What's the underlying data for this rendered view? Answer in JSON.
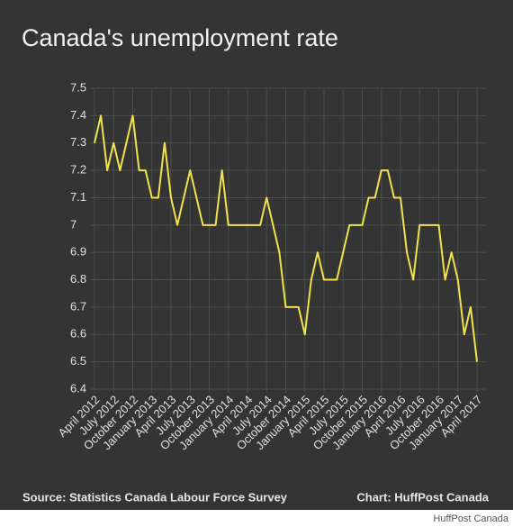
{
  "chart_data": {
    "type": "line",
    "title": "Canada's unemployment rate",
    "source": "Source: Statistics Canada Labour Force Survey",
    "credit": "Chart: HuffPost Canada",
    "watermark": "HuffPost Canada",
    "categories": [
      "April 2012",
      null,
      null,
      "July 2012",
      null,
      null,
      "October 2012",
      null,
      null,
      "January 2013",
      null,
      null,
      "April 2013",
      null,
      null,
      "July 2013",
      null,
      null,
      "October 2013",
      null,
      null,
      "January 2014",
      null,
      null,
      "April 2014",
      null,
      null,
      "July 2014",
      null,
      null,
      "October 2014",
      null,
      null,
      "January 2015",
      null,
      null,
      "April 2015",
      null,
      null,
      "July 2015",
      null,
      null,
      "October 2015",
      null,
      null,
      "January 2016",
      null,
      null,
      "April 2016",
      null,
      null,
      "July 2016",
      null,
      null,
      "October 2016",
      null,
      null,
      "January 2017",
      null,
      null,
      "April 2017"
    ],
    "series": [
      {
        "name": "Unemployment rate",
        "color": "#f2e34c",
        "values": [
          7.3,
          7.4,
          7.2,
          7.3,
          7.2,
          7.3,
          7.4,
          7.2,
          7.2,
          7.1,
          7.1,
          7.3,
          7.1,
          7.0,
          7.1,
          7.2,
          7.1,
          7.0,
          7.0,
          7.0,
          7.2,
          7.0,
          7.0,
          7.0,
          7.0,
          7.0,
          7.0,
          7.1,
          7.0,
          6.9,
          6.7,
          6.7,
          6.7,
          6.6,
          6.8,
          6.9,
          6.8,
          6.8,
          6.8,
          6.9,
          7.0,
          7.0,
          7.0,
          7.1,
          7.1,
          7.2,
          7.2,
          7.1,
          7.1,
          6.9,
          6.8,
          7.0,
          7.0,
          7.0,
          7.0,
          6.8,
          6.9,
          6.8,
          6.6,
          6.7,
          6.5
        ]
      }
    ],
    "ylim": [
      6.4,
      7.5
    ],
    "yticks": [
      6.4,
      6.5,
      6.6,
      6.7,
      6.8,
      6.9,
      7,
      7.1,
      7.2,
      7.3,
      7.4,
      7.5
    ],
    "grid": true
  }
}
